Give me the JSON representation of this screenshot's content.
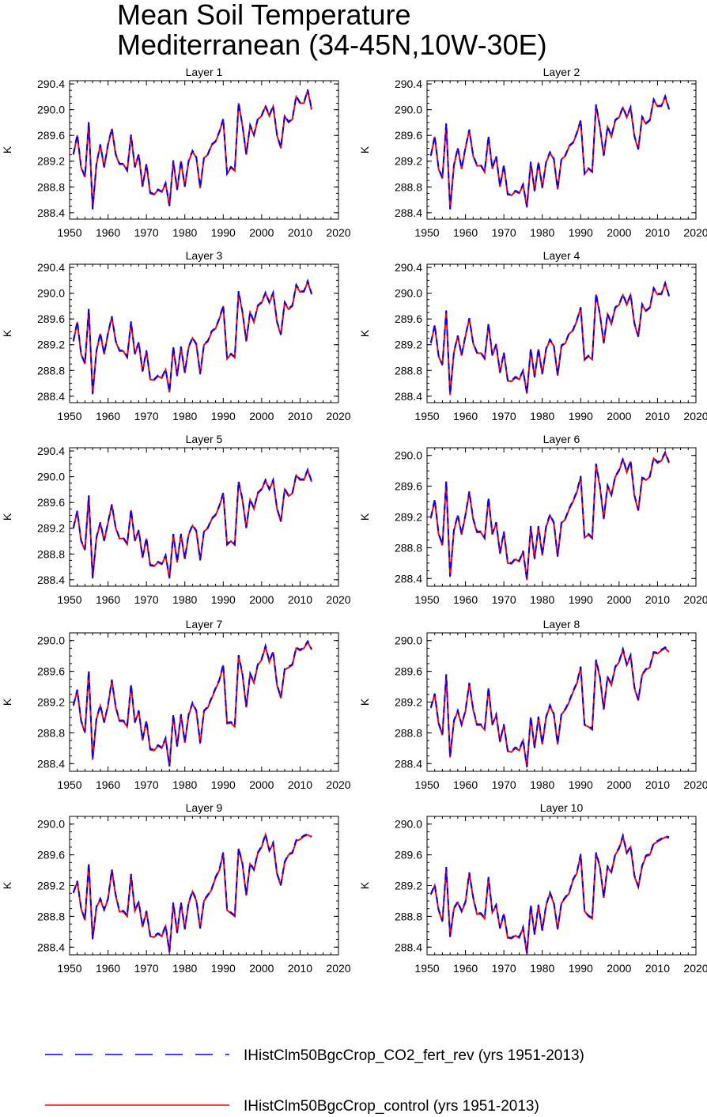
{
  "title": {
    "line1": "Mean Soil Temperature",
    "line2": "Mediterranean (34-45N,10W-30E)"
  },
  "legend": [
    {
      "label": "IHistClm50BgcCrop_CO2_fert_rev (yrs 1951-2013)",
      "color": "#0000ff",
      "style": "dashed"
    },
    {
      "label": "IHistClm50BgcCrop_control (yrs 1951-2013)",
      "color": "#ff0000",
      "style": "solid"
    }
  ],
  "chart_data": [
    {
      "type": "line",
      "title": "Layer 1",
      "ylabel": "K",
      "xlim": [
        1950,
        2020
      ],
      "ylim": [
        288.3,
        290.45
      ],
      "xticks": [
        1950,
        1960,
        1970,
        1980,
        1990,
        2000,
        2010,
        2020
      ],
      "yticks": [
        "288.4",
        "288.8",
        "289.2",
        "289.6",
        "290.0",
        "290.4"
      ],
      "x_start": 1951,
      "series": [
        {
          "values": [
            289.3,
            289.6,
            289.1,
            288.95,
            289.8,
            288.45,
            289.15,
            289.45,
            289.1,
            289.45,
            289.7,
            289.3,
            289.15,
            289.15,
            289.05,
            289.6,
            289.1,
            289.3,
            288.8,
            289.15,
            288.7,
            288.68,
            288.75,
            288.72,
            288.85,
            288.5,
            289.2,
            288.75,
            289.2,
            288.8,
            289.2,
            289.35,
            289.25,
            288.78,
            289.25,
            289.3,
            289.45,
            289.5,
            289.65,
            289.85,
            289.0,
            289.1,
            289.05,
            290.1,
            289.75,
            289.3,
            289.75,
            289.6,
            289.85,
            289.9,
            290.05,
            289.9,
            290.05,
            289.6,
            289.4,
            289.9,
            289.8,
            289.85,
            290.2,
            290.1,
            290.1,
            290.3,
            290.0
          ]
        }
      ]
    },
    {
      "type": "line",
      "title": "Layer 2",
      "ylabel": "K",
      "xlim": [
        1950,
        2020
      ],
      "ylim": [
        288.3,
        290.45
      ],
      "xticks": [
        1950,
        1960,
        1970,
        1980,
        1990,
        2000,
        2010,
        2020
      ],
      "yticks": [
        "288.4",
        "288.8",
        "289.2",
        "289.6",
        "290.0",
        "290.4"
      ],
      "x_start": 1951,
      "series": [
        {
          "values": [
            289.28,
            289.58,
            289.08,
            288.93,
            289.78,
            288.45,
            289.13,
            289.4,
            289.08,
            289.4,
            289.68,
            289.28,
            289.13,
            289.13,
            289.03,
            289.58,
            289.08,
            289.27,
            288.8,
            289.13,
            288.68,
            288.67,
            288.73,
            288.7,
            288.83,
            288.48,
            289.18,
            288.73,
            289.18,
            288.78,
            289.18,
            289.33,
            289.23,
            288.76,
            289.23,
            289.28,
            289.43,
            289.48,
            289.63,
            289.83,
            289.0,
            289.08,
            289.03,
            290.07,
            289.73,
            289.28,
            289.73,
            289.58,
            289.83,
            289.88,
            290.03,
            289.88,
            290.03,
            289.58,
            289.38,
            289.88,
            289.78,
            289.83,
            290.15,
            290.05,
            290.05,
            290.2,
            290.0
          ]
        }
      ]
    },
    {
      "type": "line",
      "title": "Layer 3",
      "ylabel": "K",
      "xlim": [
        1950,
        2020
      ],
      "ylim": [
        288.3,
        290.45
      ],
      "xticks": [
        1950,
        1960,
        1970,
        1980,
        1990,
        2000,
        2010,
        2020
      ],
      "yticks": [
        "288.4",
        "288.8",
        "289.2",
        "289.6",
        "290.0",
        "290.4"
      ],
      "x_start": 1951,
      "series": [
        {
          "values": [
            289.25,
            289.55,
            289.05,
            288.9,
            289.75,
            288.43,
            289.1,
            289.37,
            289.05,
            289.37,
            289.63,
            289.25,
            289.1,
            289.1,
            289.0,
            289.55,
            289.05,
            289.23,
            288.78,
            289.1,
            288.66,
            288.65,
            288.71,
            288.68,
            288.81,
            288.46,
            289.16,
            288.71,
            289.16,
            288.76,
            289.16,
            289.3,
            289.2,
            288.74,
            289.2,
            289.25,
            289.4,
            289.45,
            289.6,
            289.8,
            288.98,
            289.05,
            289.0,
            290.02,
            289.7,
            289.25,
            289.7,
            289.55,
            289.8,
            289.85,
            290.0,
            289.85,
            290.0,
            289.55,
            289.35,
            289.85,
            289.75,
            289.8,
            290.12,
            290.02,
            290.02,
            290.18,
            289.98
          ]
        }
      ]
    },
    {
      "type": "line",
      "title": "Layer 4",
      "ylabel": "K",
      "xlim": [
        1950,
        2020
      ],
      "ylim": [
        288.3,
        290.45
      ],
      "xticks": [
        1950,
        1960,
        1970,
        1980,
        1990,
        2000,
        2010,
        2020
      ],
      "yticks": [
        "288.4",
        "288.8",
        "289.2",
        "289.6",
        "290.0",
        "290.4"
      ],
      "x_start": 1951,
      "series": [
        {
          "values": [
            289.22,
            289.5,
            289.02,
            288.88,
            289.72,
            288.42,
            289.08,
            289.33,
            289.03,
            289.33,
            289.6,
            289.22,
            289.07,
            289.07,
            288.98,
            289.52,
            289.03,
            289.2,
            288.76,
            289.07,
            288.64,
            288.63,
            288.69,
            288.66,
            288.79,
            288.44,
            289.13,
            288.69,
            289.13,
            288.74,
            289.13,
            289.27,
            289.18,
            288.72,
            289.18,
            289.22,
            289.37,
            289.42,
            289.57,
            289.77,
            288.96,
            289.02,
            288.97,
            289.98,
            289.67,
            289.22,
            289.67,
            289.52,
            289.77,
            289.82,
            289.97,
            289.82,
            289.97,
            289.52,
            289.32,
            289.82,
            289.72,
            289.77,
            290.07,
            289.98,
            289.98,
            290.15,
            289.95
          ]
        }
      ]
    },
    {
      "type": "line",
      "title": "Layer 5",
      "ylabel": "K",
      "xlim": [
        1950,
        2020
      ],
      "ylim": [
        288.3,
        290.45
      ],
      "xticks": [
        1950,
        1960,
        1970,
        1980,
        1990,
        2000,
        2010,
        2020
      ],
      "yticks": [
        "288.4",
        "288.8",
        "289.2",
        "289.6",
        "290.0",
        "290.4"
      ],
      "x_start": 1951,
      "series": [
        {
          "values": [
            289.2,
            289.46,
            289.0,
            288.86,
            289.7,
            288.42,
            289.05,
            289.28,
            289.0,
            289.28,
            289.56,
            289.2,
            289.04,
            289.04,
            288.95,
            289.48,
            289.0,
            289.16,
            288.74,
            289.04,
            288.62,
            288.61,
            288.67,
            288.64,
            288.77,
            288.42,
            289.1,
            288.67,
            289.1,
            288.72,
            289.1,
            289.24,
            289.15,
            288.7,
            289.15,
            289.2,
            289.34,
            289.4,
            289.54,
            289.74,
            288.94,
            289.0,
            288.94,
            289.92,
            289.64,
            289.2,
            289.64,
            289.5,
            289.74,
            289.8,
            289.94,
            289.8,
            289.94,
            289.5,
            289.3,
            289.8,
            289.7,
            289.74,
            290.02,
            289.95,
            289.95,
            290.1,
            289.92
          ]
        }
      ]
    },
    {
      "type": "line",
      "title": "Layer 6",
      "ylabel": "K",
      "xlim": [
        1950,
        2020
      ],
      "ylim": [
        288.3,
        290.1
      ],
      "xticks": [
        1950,
        1960,
        1970,
        1980,
        1990,
        2000,
        2010,
        2020
      ],
      "yticks": [
        "288.4",
        "288.8",
        "289.2",
        "289.6",
        "290.0"
      ],
      "x_start": 1951,
      "series": [
        {
          "values": [
            289.18,
            289.42,
            288.98,
            288.83,
            289.66,
            288.42,
            289.02,
            289.22,
            288.97,
            289.22,
            289.52,
            289.17,
            289.0,
            289.0,
            288.92,
            289.44,
            288.97,
            289.12,
            288.72,
            289.0,
            288.6,
            288.59,
            288.65,
            288.62,
            288.75,
            288.38,
            289.07,
            288.65,
            289.07,
            288.7,
            289.07,
            289.22,
            289.12,
            288.68,
            289.12,
            289.17,
            289.3,
            289.4,
            289.52,
            289.72,
            288.93,
            288.97,
            288.92,
            289.88,
            289.6,
            289.17,
            289.6,
            289.48,
            289.72,
            289.8,
            289.95,
            289.78,
            289.92,
            289.47,
            289.28,
            289.7,
            289.68,
            289.72,
            289.96,
            289.9,
            289.93,
            290.03,
            289.9
          ]
        }
      ]
    },
    {
      "type": "line",
      "title": "Layer 7",
      "ylabel": "K",
      "xlim": [
        1950,
        2020
      ],
      "ylim": [
        288.3,
        290.1
      ],
      "xticks": [
        1950,
        1960,
        1970,
        1980,
        1990,
        2000,
        2010,
        2020
      ],
      "yticks": [
        "288.4",
        "288.8",
        "289.2",
        "289.6",
        "290.0"
      ],
      "x_start": 1951,
      "series": [
        {
          "values": [
            289.15,
            289.35,
            288.95,
            288.8,
            289.6,
            288.45,
            288.98,
            289.15,
            288.93,
            289.15,
            289.48,
            289.13,
            288.95,
            288.95,
            288.88,
            289.42,
            288.93,
            289.08,
            288.7,
            288.95,
            288.58,
            288.57,
            288.63,
            288.6,
            288.72,
            288.36,
            289.03,
            288.62,
            289.03,
            288.67,
            289.03,
            289.18,
            289.08,
            288.66,
            289.08,
            289.13,
            289.25,
            289.37,
            289.48,
            289.68,
            288.92,
            288.93,
            288.88,
            289.8,
            289.56,
            289.13,
            289.56,
            289.45,
            289.68,
            289.75,
            289.92,
            289.72,
            289.85,
            289.42,
            289.25,
            289.62,
            289.65,
            289.68,
            289.9,
            289.87,
            289.9,
            289.98,
            289.88
          ]
        }
      ]
    },
    {
      "type": "line",
      "title": "Layer 8",
      "ylabel": "K",
      "xlim": [
        1950,
        2020
      ],
      "ylim": [
        288.3,
        290.1
      ],
      "xticks": [
        1950,
        1960,
        1970,
        1980,
        1990,
        2000,
        2010,
        2020
      ],
      "yticks": [
        "288.4",
        "288.8",
        "289.2",
        "289.6",
        "290.0"
      ],
      "x_start": 1951,
      "series": [
        {
          "values": [
            289.12,
            289.3,
            288.92,
            288.77,
            289.55,
            288.48,
            288.95,
            289.08,
            288.9,
            289.08,
            289.44,
            289.1,
            288.9,
            288.9,
            288.84,
            289.38,
            288.9,
            289.03,
            288.68,
            288.9,
            288.56,
            288.55,
            288.6,
            288.57,
            288.7,
            288.35,
            289.0,
            288.6,
            289.0,
            288.65,
            289.0,
            289.15,
            289.04,
            288.65,
            289.04,
            289.1,
            289.2,
            289.33,
            289.44,
            289.65,
            288.9,
            288.88,
            288.84,
            289.74,
            289.52,
            289.1,
            289.52,
            289.42,
            289.65,
            289.72,
            289.88,
            289.68,
            289.8,
            289.38,
            289.22,
            289.55,
            289.62,
            289.65,
            289.84,
            289.83,
            289.87,
            289.9,
            289.85
          ]
        }
      ]
    },
    {
      "type": "line",
      "title": "Layer 9",
      "ylabel": "K",
      "xlim": [
        1950,
        2020
      ],
      "ylim": [
        288.3,
        290.1
      ],
      "xticks": [
        1950,
        1960,
        1970,
        1980,
        1990,
        2000,
        2010,
        2020
      ],
      "yticks": [
        "288.4",
        "288.8",
        "289.2",
        "289.6",
        "290.0"
      ],
      "x_start": 1951,
      "series": [
        {
          "values": [
            289.1,
            289.25,
            288.9,
            288.75,
            289.48,
            288.5,
            288.92,
            289.02,
            288.88,
            289.02,
            289.4,
            289.07,
            288.86,
            288.86,
            288.8,
            289.34,
            288.87,
            288.98,
            288.66,
            288.86,
            288.54,
            288.53,
            288.57,
            288.54,
            288.67,
            288.33,
            288.97,
            288.58,
            288.97,
            288.63,
            288.97,
            289.12,
            289.0,
            288.64,
            289.0,
            289.07,
            289.15,
            289.3,
            289.4,
            289.62,
            288.88,
            288.84,
            288.8,
            289.68,
            289.48,
            289.07,
            289.48,
            289.4,
            289.62,
            289.7,
            289.86,
            289.65,
            289.75,
            289.35,
            289.2,
            289.5,
            289.6,
            289.62,
            289.78,
            289.8,
            289.84,
            289.86,
            289.83
          ]
        }
      ]
    },
    {
      "type": "line",
      "title": "Layer 10",
      "ylabel": "K",
      "xlim": [
        1950,
        2020
      ],
      "ylim": [
        288.3,
        290.1
      ],
      "xticks": [
        1950,
        1960,
        1970,
        1980,
        1990,
        2000,
        2010,
        2020
      ],
      "yticks": [
        "288.4",
        "288.8",
        "289.2",
        "289.6",
        "290.0"
      ],
      "x_start": 1951,
      "series": [
        {
          "values": [
            289.08,
            289.2,
            288.88,
            288.73,
            289.43,
            288.53,
            288.9,
            288.98,
            288.86,
            288.98,
            289.36,
            289.04,
            288.83,
            288.83,
            288.77,
            289.3,
            288.85,
            288.94,
            288.64,
            288.83,
            288.52,
            288.51,
            288.55,
            288.52,
            288.65,
            288.31,
            288.94,
            288.56,
            288.94,
            288.61,
            288.94,
            289.1,
            288.97,
            288.63,
            288.97,
            289.04,
            289.1,
            289.27,
            289.36,
            289.6,
            288.87,
            288.8,
            288.77,
            289.62,
            289.44,
            289.04,
            289.44,
            289.37,
            289.6,
            289.68,
            289.84,
            289.62,
            289.7,
            289.32,
            289.18,
            289.45,
            289.58,
            289.6,
            289.74,
            289.77,
            289.8,
            289.83,
            289.82
          ]
        }
      ]
    }
  ]
}
